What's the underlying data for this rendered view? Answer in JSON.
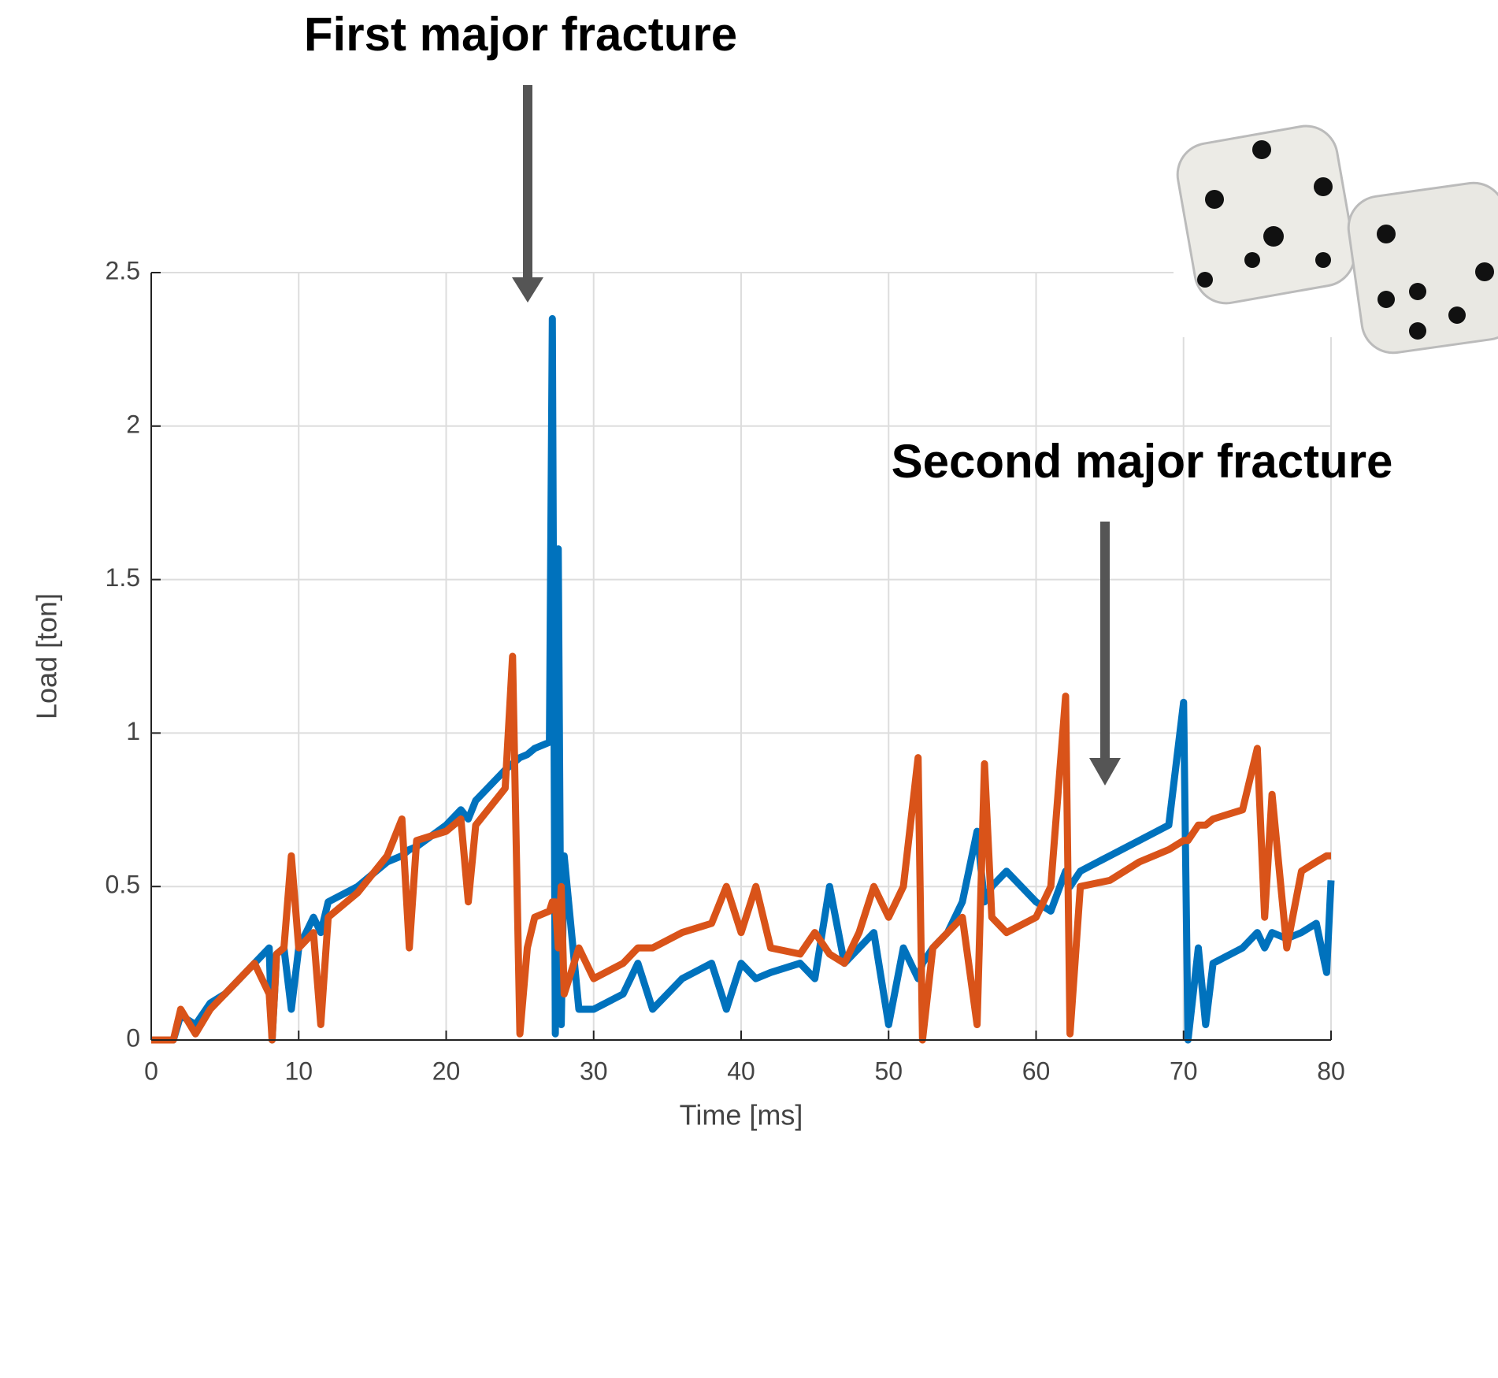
{
  "chart_data": {
    "type": "line",
    "annotations": [
      "First major fracture",
      "Second major fracture"
    ],
    "xlabel": "Time [ms]",
    "ylabel": "Load [ton]",
    "x": [
      0,
      1.5,
      2,
      3,
      4,
      5,
      6,
      7,
      8,
      8.2,
      8.5,
      9,
      9.5,
      10,
      11,
      11.5,
      12,
      14,
      16,
      17,
      17.5,
      18,
      20,
      21,
      21.5,
      22,
      24,
      24.5,
      25,
      25.5,
      26,
      27,
      27.2,
      27.4,
      27.6,
      27.8,
      28,
      29,
      30,
      32,
      33,
      34,
      36,
      38,
      39,
      40,
      41,
      42,
      44,
      45,
      46,
      47,
      48,
      49,
      50,
      51,
      52,
      52.3,
      53,
      54,
      55,
      56,
      56.5,
      57,
      58,
      60,
      61,
      62,
      62.3,
      63,
      65,
      67,
      69,
      70,
      70.3,
      71,
      71.5,
      72,
      74,
      75,
      75.5,
      76,
      77,
      78,
      79,
      79.7,
      80
    ],
    "series": [
      {
        "color": "#0072bd",
        "values": [
          0,
          0,
          0.08,
          0.05,
          0.12,
          0.15,
          0.2,
          0.25,
          0.3,
          0,
          0.28,
          0.3,
          0.1,
          0.3,
          0.4,
          0.35,
          0.45,
          0.5,
          0.58,
          0.6,
          0.62,
          0.63,
          0.7,
          0.75,
          0.72,
          0.78,
          0.88,
          0.9,
          0.92,
          0.93,
          0.95,
          0.97,
          2.35,
          0.02,
          1.6,
          0.05,
          0.6,
          0.1,
          0.1,
          0.15,
          0.25,
          0.1,
          0.2,
          0.25,
          0.1,
          0.25,
          0.2,
          0.22,
          0.25,
          0.2,
          0.5,
          0.25,
          0.3,
          0.35,
          0.05,
          0.3,
          0.2,
          0.25,
          0.3,
          0.35,
          0.45,
          0.68,
          0.45,
          0.5,
          0.55,
          0.45,
          0.42,
          0.55,
          0.5,
          0.55,
          0.6,
          0.65,
          0.7,
          1.1,
          0,
          0.3,
          0.05,
          0.25,
          0.3,
          0.35,
          0.3,
          0.35,
          0.33,
          0.35,
          0.38,
          0.22,
          0.52
        ]
      },
      {
        "color": "#d95319",
        "values": [
          0,
          0,
          0.1,
          0.02,
          0.1,
          0.15,
          0.2,
          0.25,
          0.15,
          0,
          0.28,
          0.3,
          0.6,
          0.3,
          0.35,
          0.05,
          0.4,
          0.48,
          0.6,
          0.72,
          0.3,
          0.65,
          0.68,
          0.72,
          0.45,
          0.7,
          0.82,
          1.25,
          0.02,
          0.3,
          0.4,
          0.42,
          0.45,
          0.45,
          0.3,
          0.5,
          0.15,
          0.3,
          0.2,
          0.25,
          0.3,
          0.3,
          0.35,
          0.38,
          0.5,
          0.35,
          0.5,
          0.3,
          0.28,
          0.35,
          0.28,
          0.25,
          0.35,
          0.5,
          0.4,
          0.5,
          0.92,
          0,
          0.3,
          0.35,
          0.4,
          0.05,
          0.9,
          0.4,
          0.35,
          0.4,
          0.5,
          1.12,
          0.02,
          0.5,
          0.52,
          0.58,
          0.62,
          0.65,
          0.65,
          0.7,
          0.7,
          0.72,
          0.75,
          0.95,
          0.4,
          0.8,
          0.3,
          0.55,
          0.58,
          0.6,
          0.6
        ]
      }
    ],
    "xlim": [
      0,
      80
    ],
    "xticks": [
      0,
      10,
      20,
      30,
      40,
      50,
      60,
      70,
      80
    ],
    "ylim": [
      0,
      2.5
    ],
    "yticks": [
      0,
      0.5,
      1,
      1.5,
      2,
      2.5
    ],
    "grid": true
  }
}
